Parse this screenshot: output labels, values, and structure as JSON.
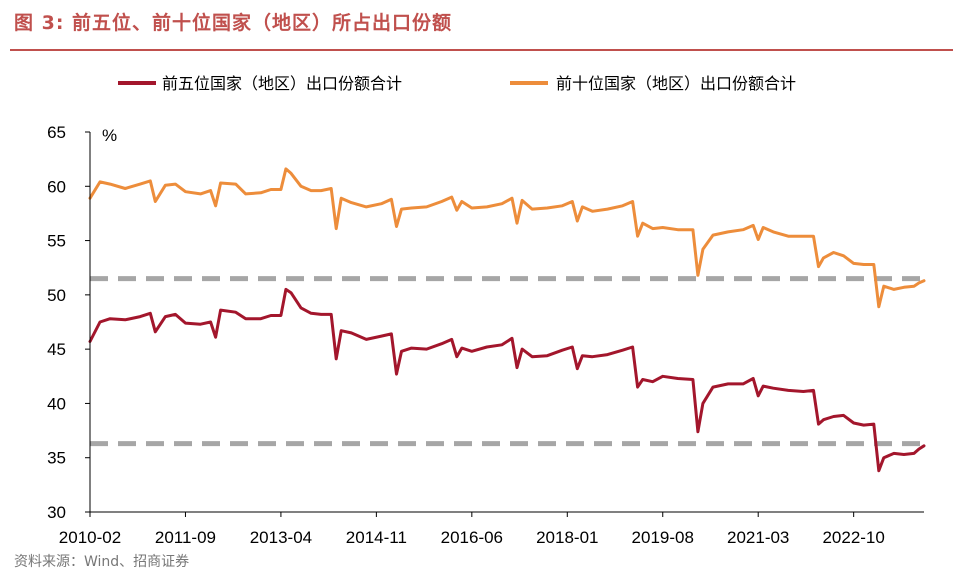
{
  "title": "图 3:  前五位、前十位国家（地区）所占出口份额",
  "source": "资料来源：Wind、招商证券",
  "chart_data": {
    "type": "line",
    "title": "",
    "xlabel": "",
    "ylabel": "%",
    "ylim": [
      30,
      65
    ],
    "yticks": [
      30,
      35,
      40,
      45,
      50,
      55,
      60,
      65
    ],
    "xlim": [
      "2010-02",
      "2023-12"
    ],
    "xticks": [
      "2010-02",
      "2011-09",
      "2013-04",
      "2014-11",
      "2016-06",
      "2018-01",
      "2019-08",
      "2021-03",
      "2022-10"
    ],
    "legend_position": "top",
    "grid": false,
    "reference_lines": [
      51.5,
      36.3
    ],
    "series": [
      {
        "name": "前五位国家（地区）出口份额合计",
        "color": "#a3162c",
        "points": [
          [
            "2010-02",
            45.7
          ],
          [
            "2010-04",
            47.5
          ],
          [
            "2010-06",
            47.8
          ],
          [
            "2010-09",
            47.7
          ],
          [
            "2010-12",
            48.0
          ],
          [
            "2011-02",
            48.3
          ],
          [
            "2011-03",
            46.6
          ],
          [
            "2011-05",
            48.0
          ],
          [
            "2011-07",
            48.2
          ],
          [
            "2011-09",
            47.4
          ],
          [
            "2011-12",
            47.3
          ],
          [
            "2012-02",
            47.5
          ],
          [
            "2012-03",
            46.1
          ],
          [
            "2012-04",
            48.6
          ],
          [
            "2012-07",
            48.4
          ],
          [
            "2012-09",
            47.8
          ],
          [
            "2012-12",
            47.8
          ],
          [
            "2013-02",
            48.1
          ],
          [
            "2013-04",
            48.1
          ],
          [
            "2013-05",
            50.5
          ],
          [
            "2013-06",
            50.2
          ],
          [
            "2013-08",
            48.8
          ],
          [
            "2013-10",
            48.3
          ],
          [
            "2013-12",
            48.2
          ],
          [
            "2014-02",
            48.2
          ],
          [
            "2014-03",
            44.1
          ],
          [
            "2014-04",
            46.7
          ],
          [
            "2014-06",
            46.5
          ],
          [
            "2014-09",
            45.9
          ],
          [
            "2014-12",
            46.2
          ],
          [
            "2015-02",
            46.4
          ],
          [
            "2015-03",
            42.7
          ],
          [
            "2015-04",
            44.8
          ],
          [
            "2015-06",
            45.1
          ],
          [
            "2015-09",
            45.0
          ],
          [
            "2015-12",
            45.5
          ],
          [
            "2016-02",
            45.9
          ],
          [
            "2016-03",
            44.3
          ],
          [
            "2016-04",
            45.1
          ],
          [
            "2016-06",
            44.8
          ],
          [
            "2016-09",
            45.2
          ],
          [
            "2016-12",
            45.4
          ],
          [
            "2017-02",
            46.0
          ],
          [
            "2017-03",
            43.3
          ],
          [
            "2017-04",
            45.0
          ],
          [
            "2017-06",
            44.3
          ],
          [
            "2017-09",
            44.4
          ],
          [
            "2017-12",
            44.9
          ],
          [
            "2018-02",
            45.2
          ],
          [
            "2018-03",
            43.2
          ],
          [
            "2018-04",
            44.4
          ],
          [
            "2018-06",
            44.3
          ],
          [
            "2018-09",
            44.5
          ],
          [
            "2018-12",
            44.9
          ],
          [
            "2019-02",
            45.2
          ],
          [
            "2019-03",
            41.5
          ],
          [
            "2019-04",
            42.2
          ],
          [
            "2019-06",
            42.0
          ],
          [
            "2019-08",
            42.5
          ],
          [
            "2019-11",
            42.3
          ],
          [
            "2020-02",
            42.2
          ],
          [
            "2020-03",
            37.4
          ],
          [
            "2020-04",
            40.0
          ],
          [
            "2020-06",
            41.5
          ],
          [
            "2020-09",
            41.8
          ],
          [
            "2020-12",
            41.8
          ],
          [
            "2021-02",
            42.3
          ],
          [
            "2021-03",
            40.7
          ],
          [
            "2021-04",
            41.6
          ],
          [
            "2021-06",
            41.4
          ],
          [
            "2021-09",
            41.2
          ],
          [
            "2021-12",
            41.1
          ],
          [
            "2022-02",
            41.2
          ],
          [
            "2022-03",
            38.1
          ],
          [
            "2022-04",
            38.5
          ],
          [
            "2022-06",
            38.8
          ],
          [
            "2022-08",
            38.9
          ],
          [
            "2022-10",
            38.2
          ],
          [
            "2022-12",
            38.0
          ],
          [
            "2023-02",
            38.1
          ],
          [
            "2023-03",
            33.8
          ],
          [
            "2023-04",
            35.0
          ],
          [
            "2023-06",
            35.4
          ],
          [
            "2023-08",
            35.3
          ],
          [
            "2023-10",
            35.4
          ],
          [
            "2023-11",
            35.8
          ],
          [
            "2023-12",
            36.1
          ]
        ]
      },
      {
        "name": "前十位国家（地区）出口份额合计",
        "color": "#ed8d3b",
        "points": [
          [
            "2010-02",
            58.9
          ],
          [
            "2010-04",
            60.4
          ],
          [
            "2010-06",
            60.2
          ],
          [
            "2010-09",
            59.8
          ],
          [
            "2010-12",
            60.2
          ],
          [
            "2011-02",
            60.5
          ],
          [
            "2011-03",
            58.6
          ],
          [
            "2011-05",
            60.1
          ],
          [
            "2011-07",
            60.2
          ],
          [
            "2011-09",
            59.5
          ],
          [
            "2011-12",
            59.3
          ],
          [
            "2012-02",
            59.6
          ],
          [
            "2012-03",
            58.2
          ],
          [
            "2012-04",
            60.3
          ],
          [
            "2012-07",
            60.2
          ],
          [
            "2012-09",
            59.3
          ],
          [
            "2012-12",
            59.4
          ],
          [
            "2013-02",
            59.7
          ],
          [
            "2013-04",
            59.7
          ],
          [
            "2013-05",
            61.6
          ],
          [
            "2013-06",
            61.2
          ],
          [
            "2013-08",
            60.0
          ],
          [
            "2013-10",
            59.6
          ],
          [
            "2013-12",
            59.6
          ],
          [
            "2014-02",
            59.8
          ],
          [
            "2014-03",
            56.1
          ],
          [
            "2014-04",
            58.9
          ],
          [
            "2014-06",
            58.5
          ],
          [
            "2014-09",
            58.1
          ],
          [
            "2014-12",
            58.4
          ],
          [
            "2015-02",
            58.8
          ],
          [
            "2015-03",
            56.3
          ],
          [
            "2015-04",
            57.9
          ],
          [
            "2015-06",
            58.0
          ],
          [
            "2015-09",
            58.1
          ],
          [
            "2015-12",
            58.6
          ],
          [
            "2016-02",
            59.0
          ],
          [
            "2016-03",
            57.8
          ],
          [
            "2016-04",
            58.6
          ],
          [
            "2016-06",
            58.0
          ],
          [
            "2016-09",
            58.1
          ],
          [
            "2016-12",
            58.4
          ],
          [
            "2017-02",
            58.9
          ],
          [
            "2017-03",
            56.6
          ],
          [
            "2017-04",
            58.7
          ],
          [
            "2017-06",
            57.9
          ],
          [
            "2017-09",
            58.0
          ],
          [
            "2017-12",
            58.2
          ],
          [
            "2018-02",
            58.6
          ],
          [
            "2018-03",
            56.8
          ],
          [
            "2018-04",
            58.1
          ],
          [
            "2018-06",
            57.7
          ],
          [
            "2018-09",
            57.9
          ],
          [
            "2018-12",
            58.2
          ],
          [
            "2019-02",
            58.6
          ],
          [
            "2019-03",
            55.4
          ],
          [
            "2019-04",
            56.6
          ],
          [
            "2019-06",
            56.1
          ],
          [
            "2019-08",
            56.2
          ],
          [
            "2019-11",
            56.0
          ],
          [
            "2020-02",
            56.0
          ],
          [
            "2020-03",
            51.8
          ],
          [
            "2020-04",
            54.2
          ],
          [
            "2020-06",
            55.5
          ],
          [
            "2020-09",
            55.8
          ],
          [
            "2020-12",
            56.0
          ],
          [
            "2021-02",
            56.4
          ],
          [
            "2021-03",
            55.1
          ],
          [
            "2021-04",
            56.2
          ],
          [
            "2021-06",
            55.8
          ],
          [
            "2021-09",
            55.4
          ],
          [
            "2021-12",
            55.4
          ],
          [
            "2022-02",
            55.4
          ],
          [
            "2022-03",
            52.6
          ],
          [
            "2022-04",
            53.4
          ],
          [
            "2022-06",
            53.9
          ],
          [
            "2022-08",
            53.6
          ],
          [
            "2022-10",
            52.9
          ],
          [
            "2022-12",
            52.8
          ],
          [
            "2023-02",
            52.8
          ],
          [
            "2023-03",
            48.9
          ],
          [
            "2023-04",
            50.8
          ],
          [
            "2023-06",
            50.5
          ],
          [
            "2023-08",
            50.7
          ],
          [
            "2023-10",
            50.8
          ],
          [
            "2023-11",
            51.1
          ],
          [
            "2023-12",
            51.3
          ]
        ]
      }
    ]
  }
}
